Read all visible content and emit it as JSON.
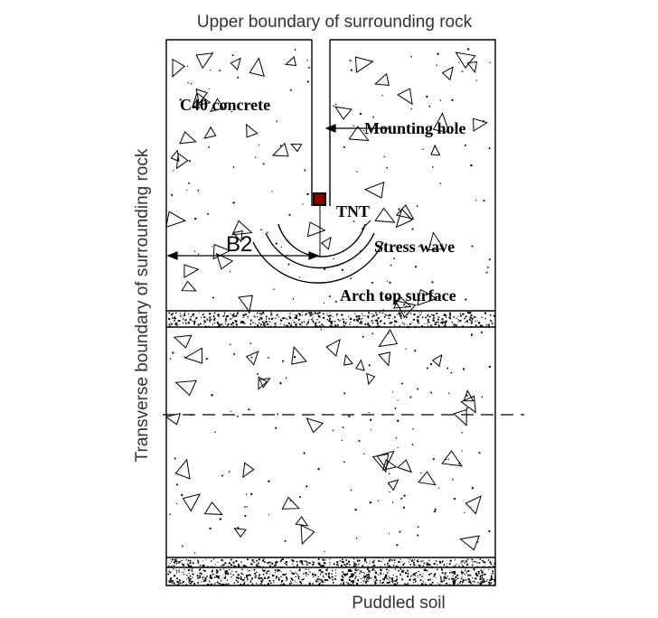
{
  "labels": {
    "top_boundary": "Upper boundary of surrounding rock",
    "side_boundary": "Transverse boundary of surrounding rock",
    "bottom": "Puddled soil",
    "concrete": "C40 concrete",
    "mounting_hole": "Mounting hole",
    "tnt": "TNT",
    "distance": "B2",
    "stress_wave": "Stress wave",
    "arch_top": "Arch top surface"
  },
  "colors": {
    "line": "#000000",
    "tnt_fill": "#8b0000",
    "background": "#ffffff"
  }
}
